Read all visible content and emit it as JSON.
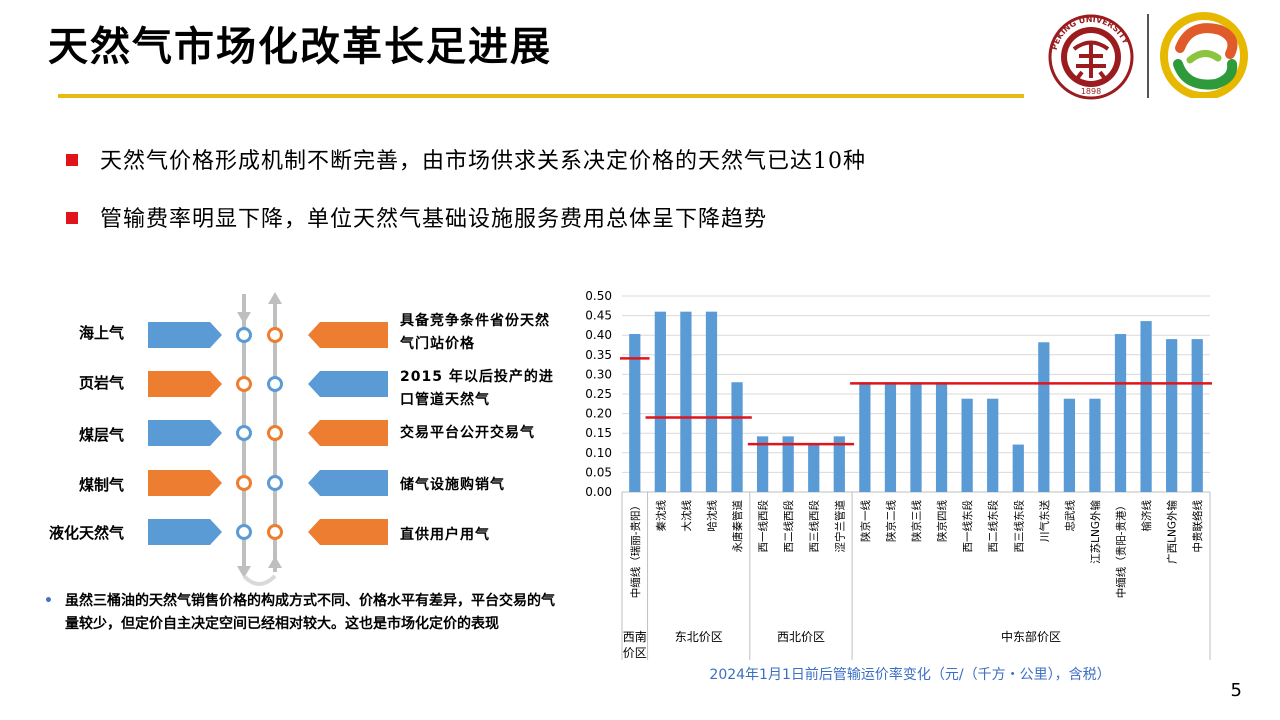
{
  "title": "天然气市场化改革长足进展",
  "bullets": [
    "天然气价格形成机制不断完善，由市场供求关系决定价格的天然气已达10种",
    "管输费率明显下降，单位天然气基础设施服务费用总体呈下降趋势"
  ],
  "colors": {
    "accent_gold": "#e8b90f",
    "bullet_red": "#e0141b",
    "blue": "#5b9bd5",
    "orange": "#ed7d31",
    "red_line": "#e0141b",
    "logo_red": "#9b1b1e"
  },
  "logos": {
    "pku_name": "PEKING UNIVERSITY",
    "pku_year": "1898"
  },
  "diagram": {
    "sources": [
      "海上气",
      "页岩气",
      "煤层气",
      "煤制气",
      "液化天然气"
    ],
    "source_colors": [
      "blue",
      "orange",
      "blue",
      "orange",
      "blue"
    ],
    "destinations": [
      "具备竞争条件省份天然气门站价格",
      "2015 年以后投产的进口管道天然气",
      "交易平台公开交易气",
      "储气设施购销气",
      "直供用户用气"
    ],
    "destination_colors": [
      "orange",
      "blue",
      "orange",
      "blue",
      "orange"
    ]
  },
  "note": "虽然三桶油的天然气销售价格的构成方式不同、价格水平有差异，平台交易的气量较少，但定价自主决定空间已经相对较大。这也是市场化定价的表现",
  "chart_caption": "2024年1月1日前后管输运价率变化（元/（千方・公里），含税）",
  "page_number": "5",
  "chart_data": {
    "type": "bar",
    "categories": [
      "中缅线（瑞丽-贵阳）",
      "秦沈线",
      "大沈线",
      "哈沈线",
      "永唐秦管道",
      "西一线西段",
      "西二线西段",
      "西三线西段",
      "涩宁兰管道",
      "陕京一线",
      "陕京二线",
      "陕京三线",
      "陕京四线",
      "西一线东段",
      "西二线东段",
      "西三线东段",
      "川气东送",
      "忠武线",
      "江苏LNG外输",
      "中缅线（贵阳-贵港）",
      "榆济线",
      "广西LNG外输",
      "中贵联络线"
    ],
    "values": [
      0.403,
      0.46,
      0.46,
      0.46,
      0.28,
      0.142,
      0.142,
      0.121,
      0.142,
      0.28,
      0.28,
      0.28,
      0.28,
      0.238,
      0.238,
      0.121,
      0.382,
      0.238,
      0.238,
      0.403,
      0.436,
      0.39,
      0.39
    ],
    "ylim": [
      0,
      0.5
    ],
    "yticks": [
      "0.00",
      "0.05",
      "0.10",
      "0.15",
      "0.20",
      "0.25",
      "0.30",
      "0.35",
      "0.40",
      "0.45",
      "0.50"
    ],
    "groups": [
      {
        "label": "西南价区",
        "start": 0,
        "end": 0,
        "new_rate": 0.341
      },
      {
        "label": "东北价区",
        "start": 1,
        "end": 4,
        "new_rate": 0.19
      },
      {
        "label": "西北价区",
        "start": 5,
        "end": 8,
        "new_rate": 0.122
      },
      {
        "label": "中东部价区",
        "start": 9,
        "end": 22,
        "new_rate": 0.277
      }
    ],
    "grid": true
  }
}
